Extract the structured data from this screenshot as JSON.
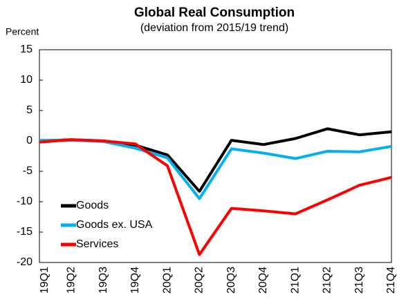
{
  "chart_data": {
    "type": "line",
    "title": "Global Real Consumption",
    "subtitle": "(deviation from 2015/19 trend)",
    "y_label": "Percent",
    "categories": [
      "19Q1",
      "19Q2",
      "19Q3",
      "19Q4",
      "20Q1",
      "20Q2",
      "20Q3",
      "20Q4",
      "21Q1",
      "21Q2",
      "21Q3",
      "21Q4"
    ],
    "series": [
      {
        "name": "Goods",
        "color": "#000000",
        "values": [
          0,
          0.2,
          0,
          -0.7,
          -2.3,
          -8.3,
          0.1,
          -0.6,
          0.4,
          2.0,
          1.0,
          1.5
        ]
      },
      {
        "name": "Goods ex. USA",
        "color": "#00b0f0",
        "values": [
          0.1,
          0.1,
          -0.1,
          -1.2,
          -2.8,
          -9.5,
          -1.3,
          -2.0,
          -2.9,
          -1.7,
          -1.8,
          -0.9
        ]
      },
      {
        "name": "Services",
        "color": "#ff0000",
        "values": [
          -0.2,
          0.2,
          0,
          -0.5,
          -4.1,
          -18.7,
          -11.1,
          -11.5,
          -12.0,
          -9.7,
          -7.3,
          -6.0
        ]
      }
    ],
    "ylim": [
      -20,
      15
    ],
    "yticks": [
      -20,
      -15,
      -10,
      -5,
      0,
      5,
      10,
      15
    ],
    "grid": false,
    "legend": "lower left"
  }
}
